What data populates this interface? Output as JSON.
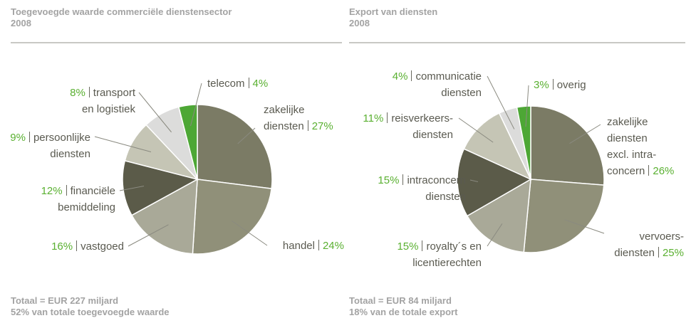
{
  "chart_data": [
    {
      "type": "pie",
      "title": "Toegevoegde waarde commerciële dienstensector",
      "subtitle": "2008",
      "categories": [
        "zakelijke\ndiensten",
        "handel",
        "vastgoed",
        "financiële\nbemiddeling",
        "persoonlijke\ndiensten",
        "transport\nen logistiek",
        "telecom"
      ],
      "values": [
        27,
        24,
        16,
        12,
        9,
        8,
        4
      ],
      "value_labels": [
        "27%",
        "24%",
        "16%",
        "12%",
        "9%",
        "8%",
        "4%"
      ],
      "colors": [
        "#7b7b65",
        "#909079",
        "#a9a998",
        "#5b5b49",
        "#c5c5b5",
        "#dcdcdb",
        "#4da735"
      ],
      "footer": [
        "Totaal = EUR 227 miljard",
        "52% van totale toegevoegde waarde"
      ]
    },
    {
      "type": "pie",
      "title": "Export van diensten",
      "subtitle": "2008",
      "categories": [
        "zakelijke\ndiensten\nexcl. intra-\nconcern",
        "vervoers-\ndiensten",
        "royalty´s en\nlicentierechten",
        "intraconcern\ndiensten",
        "reisverkeers-\ndiensten",
        "communicatie\ndiensten",
        "overig"
      ],
      "values": [
        26,
        25,
        15,
        15,
        11,
        4,
        3
      ],
      "value_labels": [
        "26%",
        "25%",
        "15%",
        "15%",
        "11%",
        "4%",
        "3%"
      ],
      "colors": [
        "#7b7b65",
        "#909079",
        "#a9a998",
        "#5b5b49",
        "#c5c5b5",
        "#dcdcdb",
        "#4da735"
      ],
      "footer": [
        "Totaal = EUR 84 miljard",
        "18% van de totale export"
      ]
    }
  ]
}
